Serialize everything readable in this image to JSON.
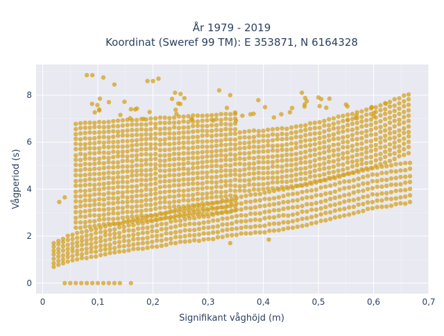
{
  "chart_data": {
    "type": "scatter",
    "title_line1": "År 1979 - 2019",
    "title_line2": "Koordinat (Sweref 99 TM): E 353871, N 6164328",
    "xlabel": "Signifikant våghöjd (m)",
    "ylabel": "Vågperiod (s)",
    "xlim": [
      -0.012,
      0.7
    ],
    "ylim": [
      -0.45,
      9.3
    ],
    "x_ticks": [
      0,
      0.1,
      0.2,
      0.3,
      0.4,
      0.5,
      0.6,
      0.7
    ],
    "x_tick_labels": [
      "0",
      "0,1",
      "0,2",
      "0,3",
      "0,4",
      "0,5",
      "0,6",
      "0,7"
    ],
    "y_ticks": [
      0,
      2,
      4,
      6,
      8
    ],
    "y_tick_labels": [
      "0",
      "2",
      "4",
      "6",
      "8"
    ],
    "grid": true,
    "colors": {
      "marker": "#D4A017",
      "plot_bg": "#E8E9F1",
      "grid": "#ffffff"
    },
    "series": [
      {
        "swell_band": [
          [
            0.02,
            1.2
          ],
          [
            0.05,
            1.5
          ],
          [
            0.1,
            1.75
          ],
          [
            0.15,
            2.0
          ],
          [
            0.2,
            2.2
          ],
          [
            0.25,
            2.45
          ],
          [
            0.3,
            2.6
          ],
          [
            0.35,
            2.85
          ],
          [
            0.4,
            3.0
          ],
          [
            0.45,
            3.2
          ],
          [
            0.5,
            3.45
          ],
          [
            0.55,
            3.75
          ],
          [
            0.6,
            4.05
          ],
          [
            0.67,
            4.3
          ]
        ],
        "wind_sea_band": [
          [
            0.05,
            4.5
          ],
          [
            0.1,
            4.7
          ],
          [
            0.15,
            4.8
          ],
          [
            0.2,
            4.9
          ],
          [
            0.25,
            5.0
          ],
          [
            0.3,
            5.05
          ],
          [
            0.35,
            5.1
          ],
          [
            0.4,
            5.2
          ],
          [
            0.45,
            5.3
          ],
          [
            0.5,
            5.55
          ],
          [
            0.55,
            5.85
          ],
          [
            0.6,
            6.15
          ],
          [
            0.67,
            6.8
          ]
        ],
        "zero_points": [
          [
            0.04,
            0
          ],
          [
            0.05,
            0
          ],
          [
            0.06,
            0
          ],
          [
            0.07,
            0
          ],
          [
            0.08,
            0
          ],
          [
            0.09,
            0
          ],
          [
            0.1,
            0
          ],
          [
            0.11,
            0
          ],
          [
            0.12,
            0
          ],
          [
            0.13,
            0
          ],
          [
            0.14,
            0
          ],
          [
            0.16,
            0
          ]
        ],
        "outliers": [
          [
            0.08,
            8.85
          ],
          [
            0.09,
            8.85
          ],
          [
            0.11,
            8.75
          ],
          [
            0.13,
            8.45
          ],
          [
            0.19,
            8.6
          ],
          [
            0.2,
            8.6
          ],
          [
            0.21,
            8.7
          ],
          [
            0.24,
            8.1
          ],
          [
            0.25,
            8.05
          ],
          [
            0.32,
            8.2
          ],
          [
            0.34,
            8.0
          ],
          [
            0.47,
            8.1
          ],
          [
            0.5,
            7.9
          ],
          [
            0.52,
            7.85
          ],
          [
            0.55,
            7.6
          ],
          [
            0.16,
            7.4
          ],
          [
            0.12,
            7.7
          ],
          [
            0.03,
            3.45
          ],
          [
            0.04,
            3.65
          ],
          [
            0.34,
            1.7
          ],
          [
            0.41,
            1.85
          ]
        ]
      }
    ]
  }
}
